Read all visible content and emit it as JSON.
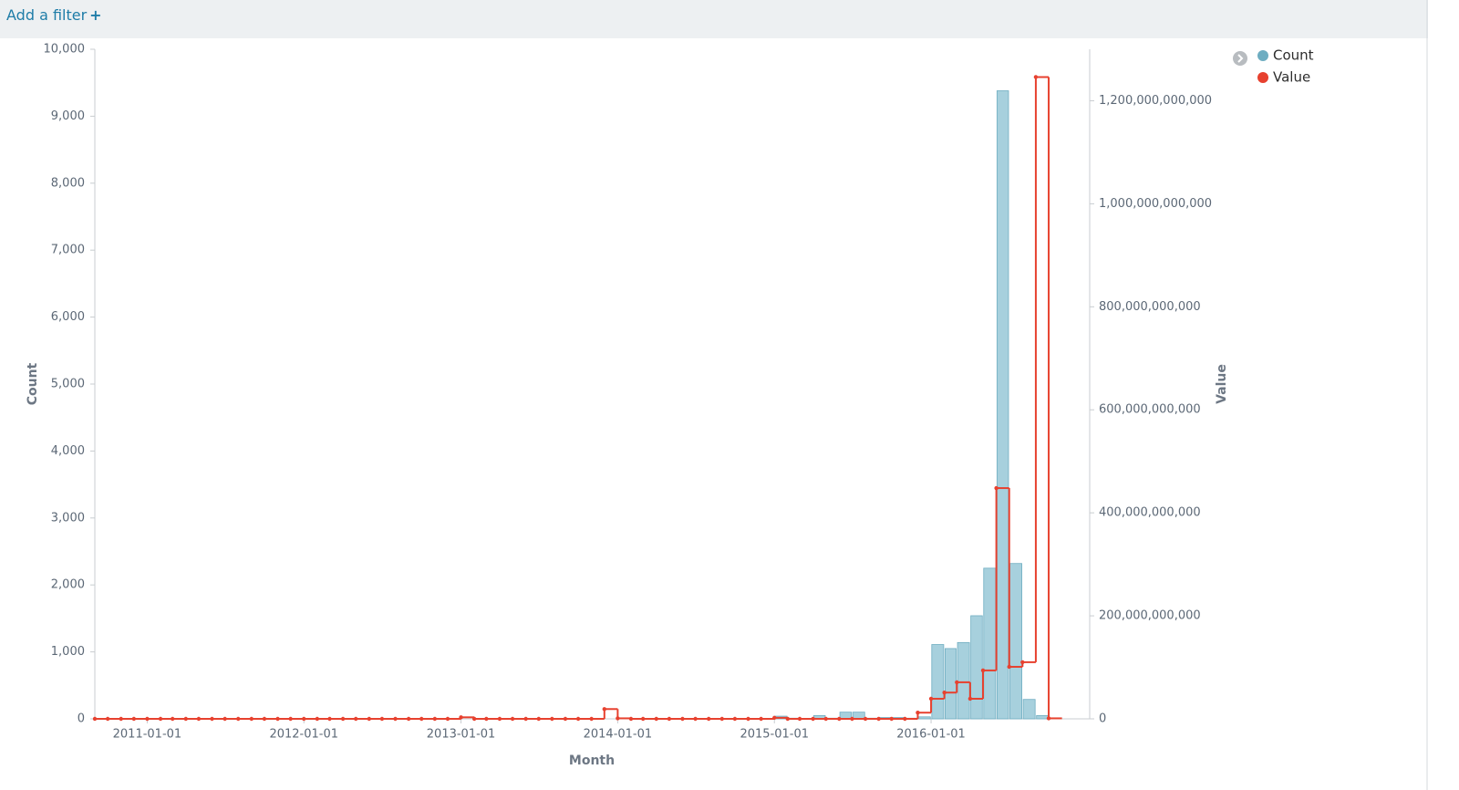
{
  "header": {
    "filter_button": "Add a filter"
  },
  "chart_data": {
    "type": "bar-step-line",
    "xlabel": "Month",
    "ylabel": "Count",
    "y2label": "Value",
    "x": [
      "2010-09-01",
      "2010-10-01",
      "2010-11-01",
      "2010-12-01",
      "2011-01-01",
      "2011-02-01",
      "2011-03-01",
      "2011-04-01",
      "2011-05-01",
      "2011-06-01",
      "2011-07-01",
      "2011-08-01",
      "2011-09-01",
      "2011-10-01",
      "2011-11-01",
      "2011-12-01",
      "2012-01-01",
      "2012-02-01",
      "2012-03-01",
      "2012-04-01",
      "2012-05-01",
      "2012-06-01",
      "2012-07-01",
      "2012-08-01",
      "2012-09-01",
      "2012-10-01",
      "2012-11-01",
      "2012-12-01",
      "2013-01-01",
      "2013-02-01",
      "2013-03-01",
      "2013-04-01",
      "2013-05-01",
      "2013-06-01",
      "2013-07-01",
      "2013-08-01",
      "2013-09-01",
      "2013-10-01",
      "2013-11-01",
      "2013-12-01",
      "2014-01-01",
      "2014-02-01",
      "2014-03-01",
      "2014-04-01",
      "2014-05-01",
      "2014-06-01",
      "2014-07-01",
      "2014-08-01",
      "2014-09-01",
      "2014-10-01",
      "2014-11-01",
      "2014-12-01",
      "2015-01-01",
      "2015-02-01",
      "2015-03-01",
      "2015-04-01",
      "2015-05-01",
      "2015-06-01",
      "2015-07-01",
      "2015-08-01",
      "2015-09-01",
      "2015-10-01",
      "2015-11-01",
      "2015-12-01",
      "2016-01-01",
      "2016-02-01",
      "2016-03-01",
      "2016-04-01",
      "2016-05-01",
      "2016-06-01",
      "2016-07-01",
      "2016-08-01",
      "2016-09-01",
      "2016-10-01"
    ],
    "series": [
      {
        "name": "Count",
        "color": "#6eadc1",
        "values": [
          0,
          0,
          0,
          0,
          0,
          0,
          0,
          0,
          0,
          0,
          0,
          0,
          0,
          0,
          0,
          0,
          0,
          0,
          0,
          0,
          0,
          0,
          0,
          0,
          0,
          0,
          0,
          0,
          0,
          0,
          0,
          0,
          0,
          0,
          0,
          0,
          0,
          0,
          0,
          0,
          0,
          0,
          0,
          0,
          0,
          0,
          0,
          0,
          0,
          0,
          0,
          0,
          40,
          10,
          5,
          50,
          10,
          100,
          100,
          10,
          20,
          20,
          10,
          30,
          1110,
          1050,
          1140,
          1540,
          2250,
          9380,
          2320,
          290,
          50,
          0
        ]
      },
      {
        "name": "Value",
        "color": "#e7412f",
        "axis": "y2",
        "values": [
          0,
          0,
          0,
          0,
          0,
          0,
          0,
          0,
          0,
          0,
          0,
          0,
          0,
          0,
          0,
          0,
          0,
          0,
          0,
          0,
          0,
          0,
          0,
          0,
          0,
          0,
          0,
          0,
          3000000000,
          0,
          0,
          0,
          0,
          0,
          0,
          0,
          0,
          0,
          0,
          19000000000,
          1000000000,
          0,
          0,
          0,
          0,
          0,
          0,
          0,
          0,
          0,
          0,
          0,
          2000000000,
          0,
          0,
          0,
          0,
          0,
          0,
          0,
          0,
          0,
          0,
          12000000000,
          39000000000,
          51000000000,
          71000000000,
          39000000000,
          94000000000,
          448000000000,
          101000000000,
          110000000000,
          1246000000000,
          1000000000
        ]
      }
    ],
    "xlim": [
      "2010-09-01",
      "2016-12-10"
    ],
    "xticks": [
      "2011-01-01",
      "2012-01-01",
      "2013-01-01",
      "2014-01-01",
      "2015-01-01",
      "2016-01-01"
    ],
    "ylim": [
      0,
      10000
    ],
    "yticks": [
      0,
      {
        "value": 1000,
        "label": "1,000"
      },
      {
        "value": 2000,
        "label": "2,000"
      },
      {
        "value": 3000,
        "label": "3,000"
      },
      {
        "value": 4000,
        "label": "4,000"
      },
      {
        "value": 5000,
        "label": "5,000"
      },
      {
        "value": 6000,
        "label": "6,000"
      },
      {
        "value": 7000,
        "label": "7,000"
      },
      {
        "value": 8000,
        "label": "8,000"
      },
      {
        "value": 9000,
        "label": "9,000"
      },
      {
        "value": 10000,
        "label": "10,000"
      }
    ],
    "y2lim": [
      0,
      1300000000000
    ],
    "y2ticks": [
      0,
      {
        "value": 200000000000,
        "label": "200,000,000,000"
      },
      {
        "value": 400000000000,
        "label": "400,000,000,000"
      },
      {
        "value": 600000000000,
        "label": "600,000,000,000"
      },
      {
        "value": 800000000000,
        "label": "800,000,000,000"
      },
      {
        "value": 1000000000000,
        "label": "1,000,000,000,000"
      },
      {
        "value": 1200000000000,
        "label": "1,200,000,000,000"
      }
    ]
  }
}
